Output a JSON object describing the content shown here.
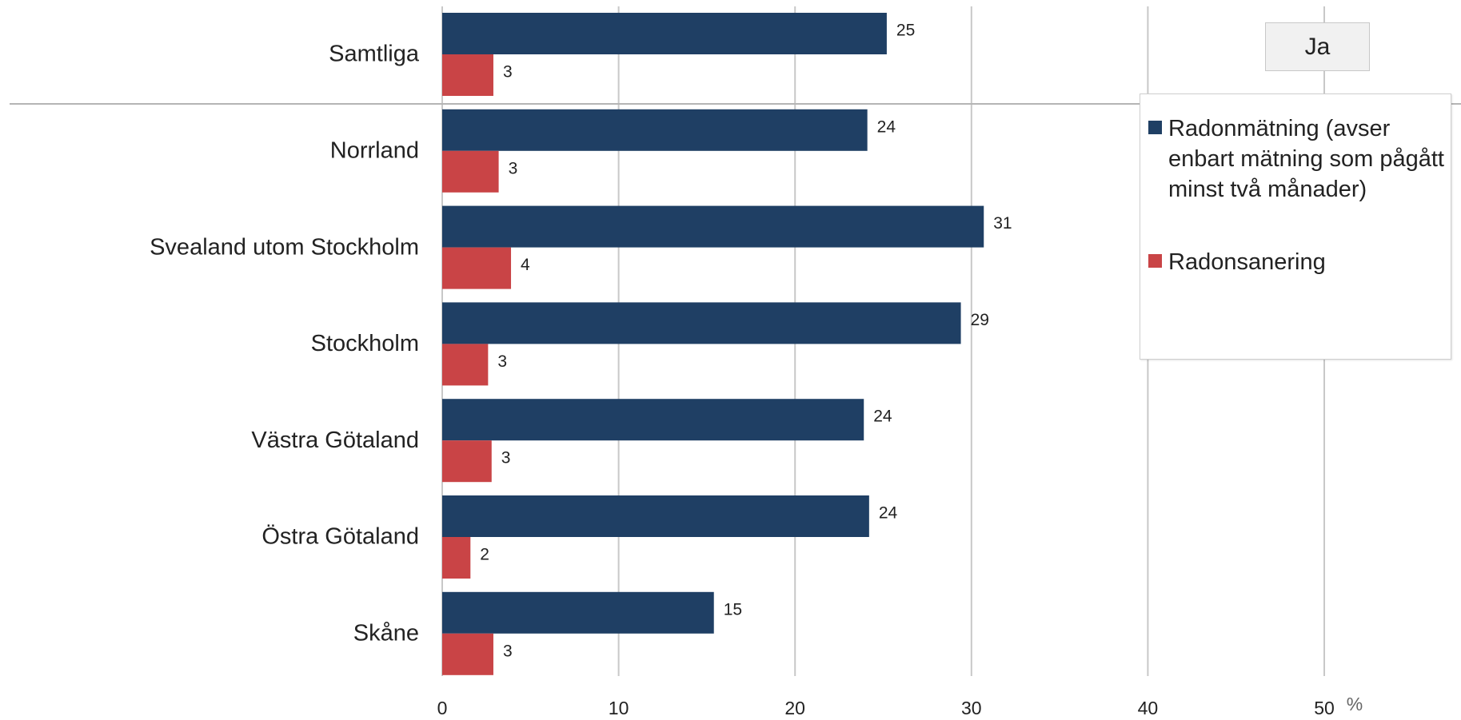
{
  "chart_data": {
    "type": "bar",
    "orientation": "horizontal",
    "categories": [
      "Samtliga",
      "Norrland",
      "Svealand utom Stockholm",
      "Stockholm",
      "Västra Götaland",
      "Östra Götaland",
      "Skåne"
    ],
    "series": [
      {
        "name": "Radonmätning (avser enbart mätning som pågått minst två månader)",
        "values": [
          25,
          24,
          31,
          29,
          24,
          24,
          15
        ],
        "color": "#1f3f64"
      },
      {
        "name": "Radonsanering",
        "values": [
          3,
          3,
          4,
          3,
          3,
          2,
          3
        ],
        "color": "#c94446"
      }
    ],
    "value_labels": [
      [
        "25",
        "24",
        "31",
        "29",
        "24",
        "24",
        "15"
      ],
      [
        "3",
        "3",
        "4",
        "3",
        "3",
        "2",
        "3"
      ]
    ],
    "actual_bar_values": [
      [
        25.2,
        24.1,
        30.7,
        29.4,
        23.9,
        24.2,
        15.4
      ],
      [
        2.9,
        3.2,
        3.9,
        2.6,
        2.8,
        1.6,
        2.9
      ]
    ],
    "xlim": [
      0,
      50
    ],
    "xticks": [
      "0",
      "10",
      "20",
      "30",
      "40",
      "50"
    ],
    "unit": "%",
    "grid": true,
    "legend_position": "right"
  },
  "filter": {
    "label": "Ja"
  }
}
